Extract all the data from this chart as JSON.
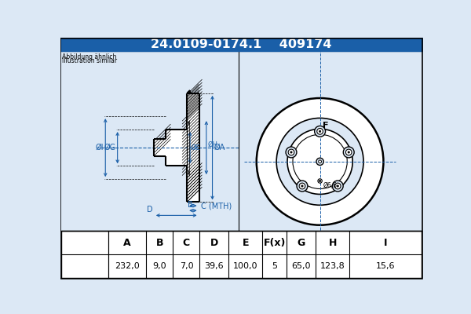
{
  "title_part1": "24.0109-0174.1",
  "title_part2": "409174",
  "title_bg": "#1a5fa8",
  "title_fg": "white",
  "note_line1": "Abbildung ähnlich",
  "note_line2": "Illustration similar",
  "table_headers": [
    "A",
    "B",
    "C",
    "D",
    "E",
    "F(x)",
    "G",
    "H",
    "I"
  ],
  "table_values": [
    "232,0",
    "9,0",
    "7,0",
    "39,6",
    "100,0",
    "5",
    "65,0",
    "123,8",
    "15,6"
  ],
  "small_label": "Ø6,6",
  "bg_color": "#dce8f5",
  "line_color": "#000000",
  "dim_color": "#1a5fa8",
  "white": "#ffffff"
}
